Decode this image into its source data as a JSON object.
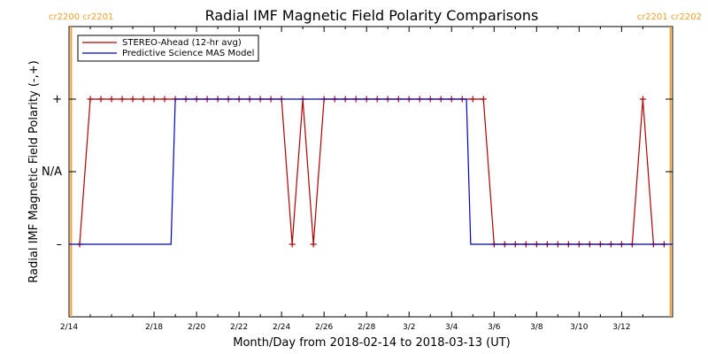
{
  "chart_data": {
    "type": "line",
    "title": "Radial IMF Magnetic Field Polarity Comparisons",
    "xlabel": "Month/Day from 2018-02-14 to 2018-03-13 (UT)",
    "ylabel": "Radial IMF Magnetic Field Polarity (-,+)",
    "x_unit": "days from 2018-02-14",
    "xlim": [
      0,
      28.4
    ],
    "x_ticks": [
      {
        "x": 0,
        "label": "2/14"
      },
      {
        "x": 4,
        "label": "2/18"
      },
      {
        "x": 6,
        "label": "2/20"
      },
      {
        "x": 8,
        "label": "2/22"
      },
      {
        "x": 10,
        "label": "2/24"
      },
      {
        "x": 12,
        "label": "2/26"
      },
      {
        "x": 14,
        "label": "2/28"
      },
      {
        "x": 16,
        "label": "3/2"
      },
      {
        "x": 18,
        "label": "3/4"
      },
      {
        "x": 20,
        "label": "3/6"
      },
      {
        "x": 22,
        "label": "3/8"
      },
      {
        "x": 24,
        "label": "3/10"
      },
      {
        "x": 26,
        "label": "3/12"
      }
    ],
    "x_minor_ticks": [
      1,
      2,
      3,
      5,
      7,
      9,
      11,
      13,
      15,
      17,
      19,
      21,
      23,
      25,
      27
    ],
    "y_levels": [
      {
        "value": 1,
        "label": "+"
      },
      {
        "value": 0,
        "label": "N/A"
      },
      {
        "value": -1,
        "label": "–"
      }
    ],
    "ylim": [
      -2,
      2
    ],
    "legend_position": "top-left",
    "colors": {
      "stereo": "#b00000",
      "model": "#0000cc",
      "carrington": "#f0a030"
    },
    "carrington_rotations": [
      {
        "x": 0.1,
        "labels": [
          "cr2200",
          "cr2201"
        ],
        "side": "left"
      },
      {
        "x": 28.3,
        "labels": [
          "cr2201",
          "cr2202"
        ],
        "side": "right"
      }
    ],
    "series": [
      {
        "name": "STEREO-Ahead (12-hr avg)",
        "color": "#b00000",
        "marker": "+",
        "x": [
          0.5,
          1.0,
          1.5,
          2.0,
          2.5,
          3.0,
          3.5,
          4.0,
          4.5,
          5.0,
          5.5,
          6.0,
          6.5,
          7.0,
          7.5,
          8.0,
          8.5,
          9.0,
          9.5,
          10.0,
          10.5,
          11.0,
          11.5,
          12.0,
          12.5,
          13.0,
          13.5,
          14.0,
          14.5,
          15.0,
          15.5,
          16.0,
          16.5,
          17.0,
          17.5,
          18.0,
          18.5,
          19.0,
          19.5,
          20.0,
          20.5,
          21.0,
          21.5,
          22.0,
          22.5,
          23.0,
          23.5,
          24.0,
          24.5,
          25.0,
          25.5,
          26.0,
          26.5,
          27.0,
          27.5,
          28.0
        ],
        "y": [
          -1,
          1,
          1,
          1,
          1,
          1,
          1,
          1,
          1,
          1,
          1,
          1,
          1,
          1,
          1,
          1,
          1,
          1,
          1,
          1,
          -1,
          1,
          -1,
          1,
          1,
          1,
          1,
          1,
          1,
          1,
          1,
          1,
          1,
          1,
          1,
          1,
          1,
          1,
          1,
          -1,
          -1,
          -1,
          -1,
          -1,
          -1,
          -1,
          -1,
          -1,
          -1,
          -1,
          -1,
          -1,
          -1,
          1,
          -1,
          -1
        ]
      },
      {
        "name": "Predictive Science MAS Model",
        "color": "#0000cc",
        "x": [
          0.0,
          4.8,
          5.0,
          18.7,
          18.9,
          28.4
        ],
        "y": [
          -1,
          -1,
          1,
          1,
          -1,
          -1
        ]
      }
    ]
  }
}
